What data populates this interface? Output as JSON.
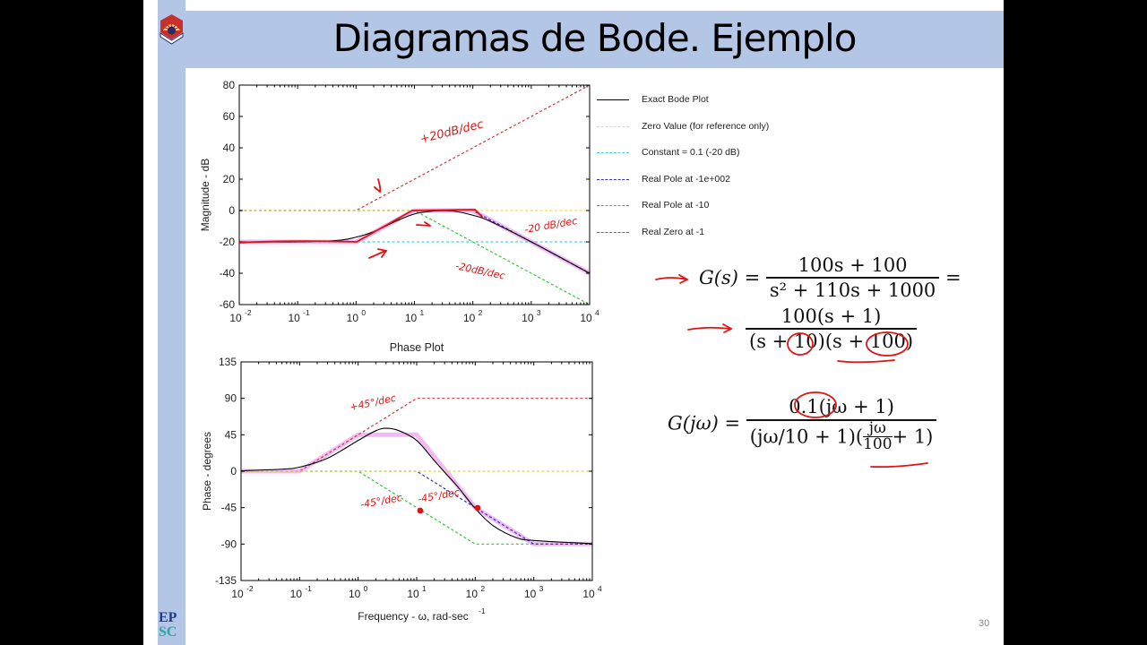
{
  "slide": {
    "title": "Diagramas de Bode. Ejemplo",
    "page_number": "30",
    "footer_logo_text": [
      "EP",
      "SC"
    ],
    "colors": {
      "band": "#b4c6e6",
      "ink": "#e01414",
      "highlight": "#f0a8f0"
    }
  },
  "legend": [
    {
      "label": "Exact Bode Plot",
      "color": "#000000",
      "style": "solid"
    },
    {
      "label": "Zero Value (for reference only)",
      "color": "#f2e14a",
      "style": "dashed"
    },
    {
      "label": "Constant = 0.1 (-20 dB)",
      "color": "#3fd6e0",
      "style": "dashed"
    },
    {
      "label": "Real Pole at -1e+002",
      "color": "#3030c0",
      "style": "dashed"
    },
    {
      "label": "Real Pole at -10",
      "color": "#30c830",
      "style": "dashed"
    },
    {
      "label": "Real Zero at -1",
      "color": "#d03a3a",
      "style": "dashed"
    }
  ],
  "equations": {
    "gs_lhs": "G(s) =",
    "gs_num": "100s + 100",
    "gs_den": "s² + 110s + 1000",
    "gs_eq": "=",
    "gs_fact_num": "100(s + 1)",
    "gs_fact_den": "(s + 10)(s + 100)",
    "gjw_lhs": "G(jω) =",
    "gjw_num": "0.1(jω + 1)",
    "gjw_den_a": "(jω/10 + 1)(",
    "gjw_den_frac_num": "jω",
    "gjw_den_frac_den": "100",
    "gjw_den_b": "+ 1)"
  },
  "annotations": {
    "mag_plus20": "+20dB/dec",
    "mag_minus20_a": "-20 dB/dec",
    "mag_minus20_b": "-20dB/dec",
    "ph_plus45": "+45°/dec",
    "ph_minus45_a": "-45°/dec",
    "ph_minus45_b": "-45°/dec"
  },
  "chart_data": [
    {
      "type": "line",
      "title": "",
      "xlabel": "",
      "ylabel": "Magnitude - dB",
      "xscale": "log",
      "xlim": [
        0.01,
        10000
      ],
      "ylim": [
        -60,
        80
      ],
      "xticks": [
        "10^-2",
        "10^-1",
        "10^0",
        "10^1",
        "10^2",
        "10^3",
        "10^4"
      ],
      "yticks": [
        80,
        60,
        40,
        20,
        0,
        -20,
        -40,
        -60
      ],
      "grid": false,
      "legend_position": "right",
      "series": [
        {
          "name": "Exact Bode Plot",
          "x": [
            0.01,
            0.1,
            0.5,
            1,
            2,
            5,
            10,
            20,
            31.6,
            50,
            100,
            200,
            1000,
            10000
          ],
          "y": [
            -20,
            -20,
            -19,
            -17,
            -13.5,
            -6.5,
            -2.2,
            -0.4,
            -0.1,
            -0.5,
            -3,
            -6.9,
            -20,
            -40
          ]
        },
        {
          "name": "Zero Value (for reference only)",
          "x": [
            0.01,
            10000
          ],
          "y": [
            0,
            0
          ]
        },
        {
          "name": "Constant = 0.1 (-20 dB)",
          "x": [
            0.01,
            10000
          ],
          "y": [
            -20,
            -20
          ]
        },
        {
          "name": "Real Pole at -1e+002",
          "x": [
            0.01,
            100,
            10000
          ],
          "y": [
            0,
            0,
            -40
          ]
        },
        {
          "name": "Real Pole at -10",
          "x": [
            0.01,
            10,
            10000
          ],
          "y": [
            0,
            0,
            -60
          ]
        },
        {
          "name": "Real Zero at -1",
          "x": [
            0.01,
            1,
            10000
          ],
          "y": [
            0,
            0,
            80
          ]
        },
        {
          "name": "Asymptotic sum (handwritten highlight)",
          "x": [
            0.01,
            1,
            10,
            100,
            10000
          ],
          "y": [
            -20,
            -20,
            0,
            0,
            -40
          ]
        }
      ]
    },
    {
      "type": "line",
      "title": "Phase Plot",
      "xlabel": "Frequency - ω, rad-sec^-1",
      "ylabel": "Phase - degrees",
      "xscale": "log",
      "xlim": [
        0.01,
        10000
      ],
      "ylim": [
        -135,
        135
      ],
      "xticks": [
        "10^-2",
        "10^-1",
        "10^0",
        "10^1",
        "10^2",
        "10^3",
        "10^4"
      ],
      "yticks": [
        135,
        90,
        45,
        0,
        -45,
        -90,
        -135
      ],
      "grid": false,
      "series": [
        {
          "name": "Exact Bode Plot",
          "x": [
            0.01,
            0.05,
            0.1,
            0.3,
            1,
            2,
            3,
            5,
            10,
            20,
            31.6,
            50,
            100,
            200,
            500,
            1000,
            10000
          ],
          "y": [
            0.5,
            2.5,
            5,
            16,
            38,
            50,
            53,
            50,
            38,
            13,
            -3,
            -19,
            -46,
            -67,
            -82,
            -85.5,
            -89.5
          ]
        },
        {
          "name": "Zero Value (for reference only)",
          "x": [
            0.01,
            10000
          ],
          "y": [
            0,
            0
          ]
        },
        {
          "name": "Constant = 0.1 (-20 dB)",
          "x": [
            0.01,
            10000
          ],
          "y": [
            0,
            0
          ]
        },
        {
          "name": "Real Pole at -1e+002",
          "x": [
            0.01,
            10,
            1000,
            10000
          ],
          "y": [
            0,
            0,
            -90,
            -90
          ]
        },
        {
          "name": "Real Pole at -10",
          "x": [
            0.01,
            1,
            100,
            10000
          ],
          "y": [
            0,
            0,
            -90,
            -90
          ]
        },
        {
          "name": "Real Zero at -1",
          "x": [
            0.01,
            0.1,
            10,
            10000
          ],
          "y": [
            0,
            0,
            90,
            90
          ]
        },
        {
          "name": "Asymptotic sum (handwritten highlight)",
          "x": [
            0.01,
            0.1,
            1,
            10,
            100,
            1000,
            10000
          ],
          "y": [
            0,
            0,
            45,
            45,
            -45,
            -90,
            -90
          ]
        }
      ]
    }
  ]
}
